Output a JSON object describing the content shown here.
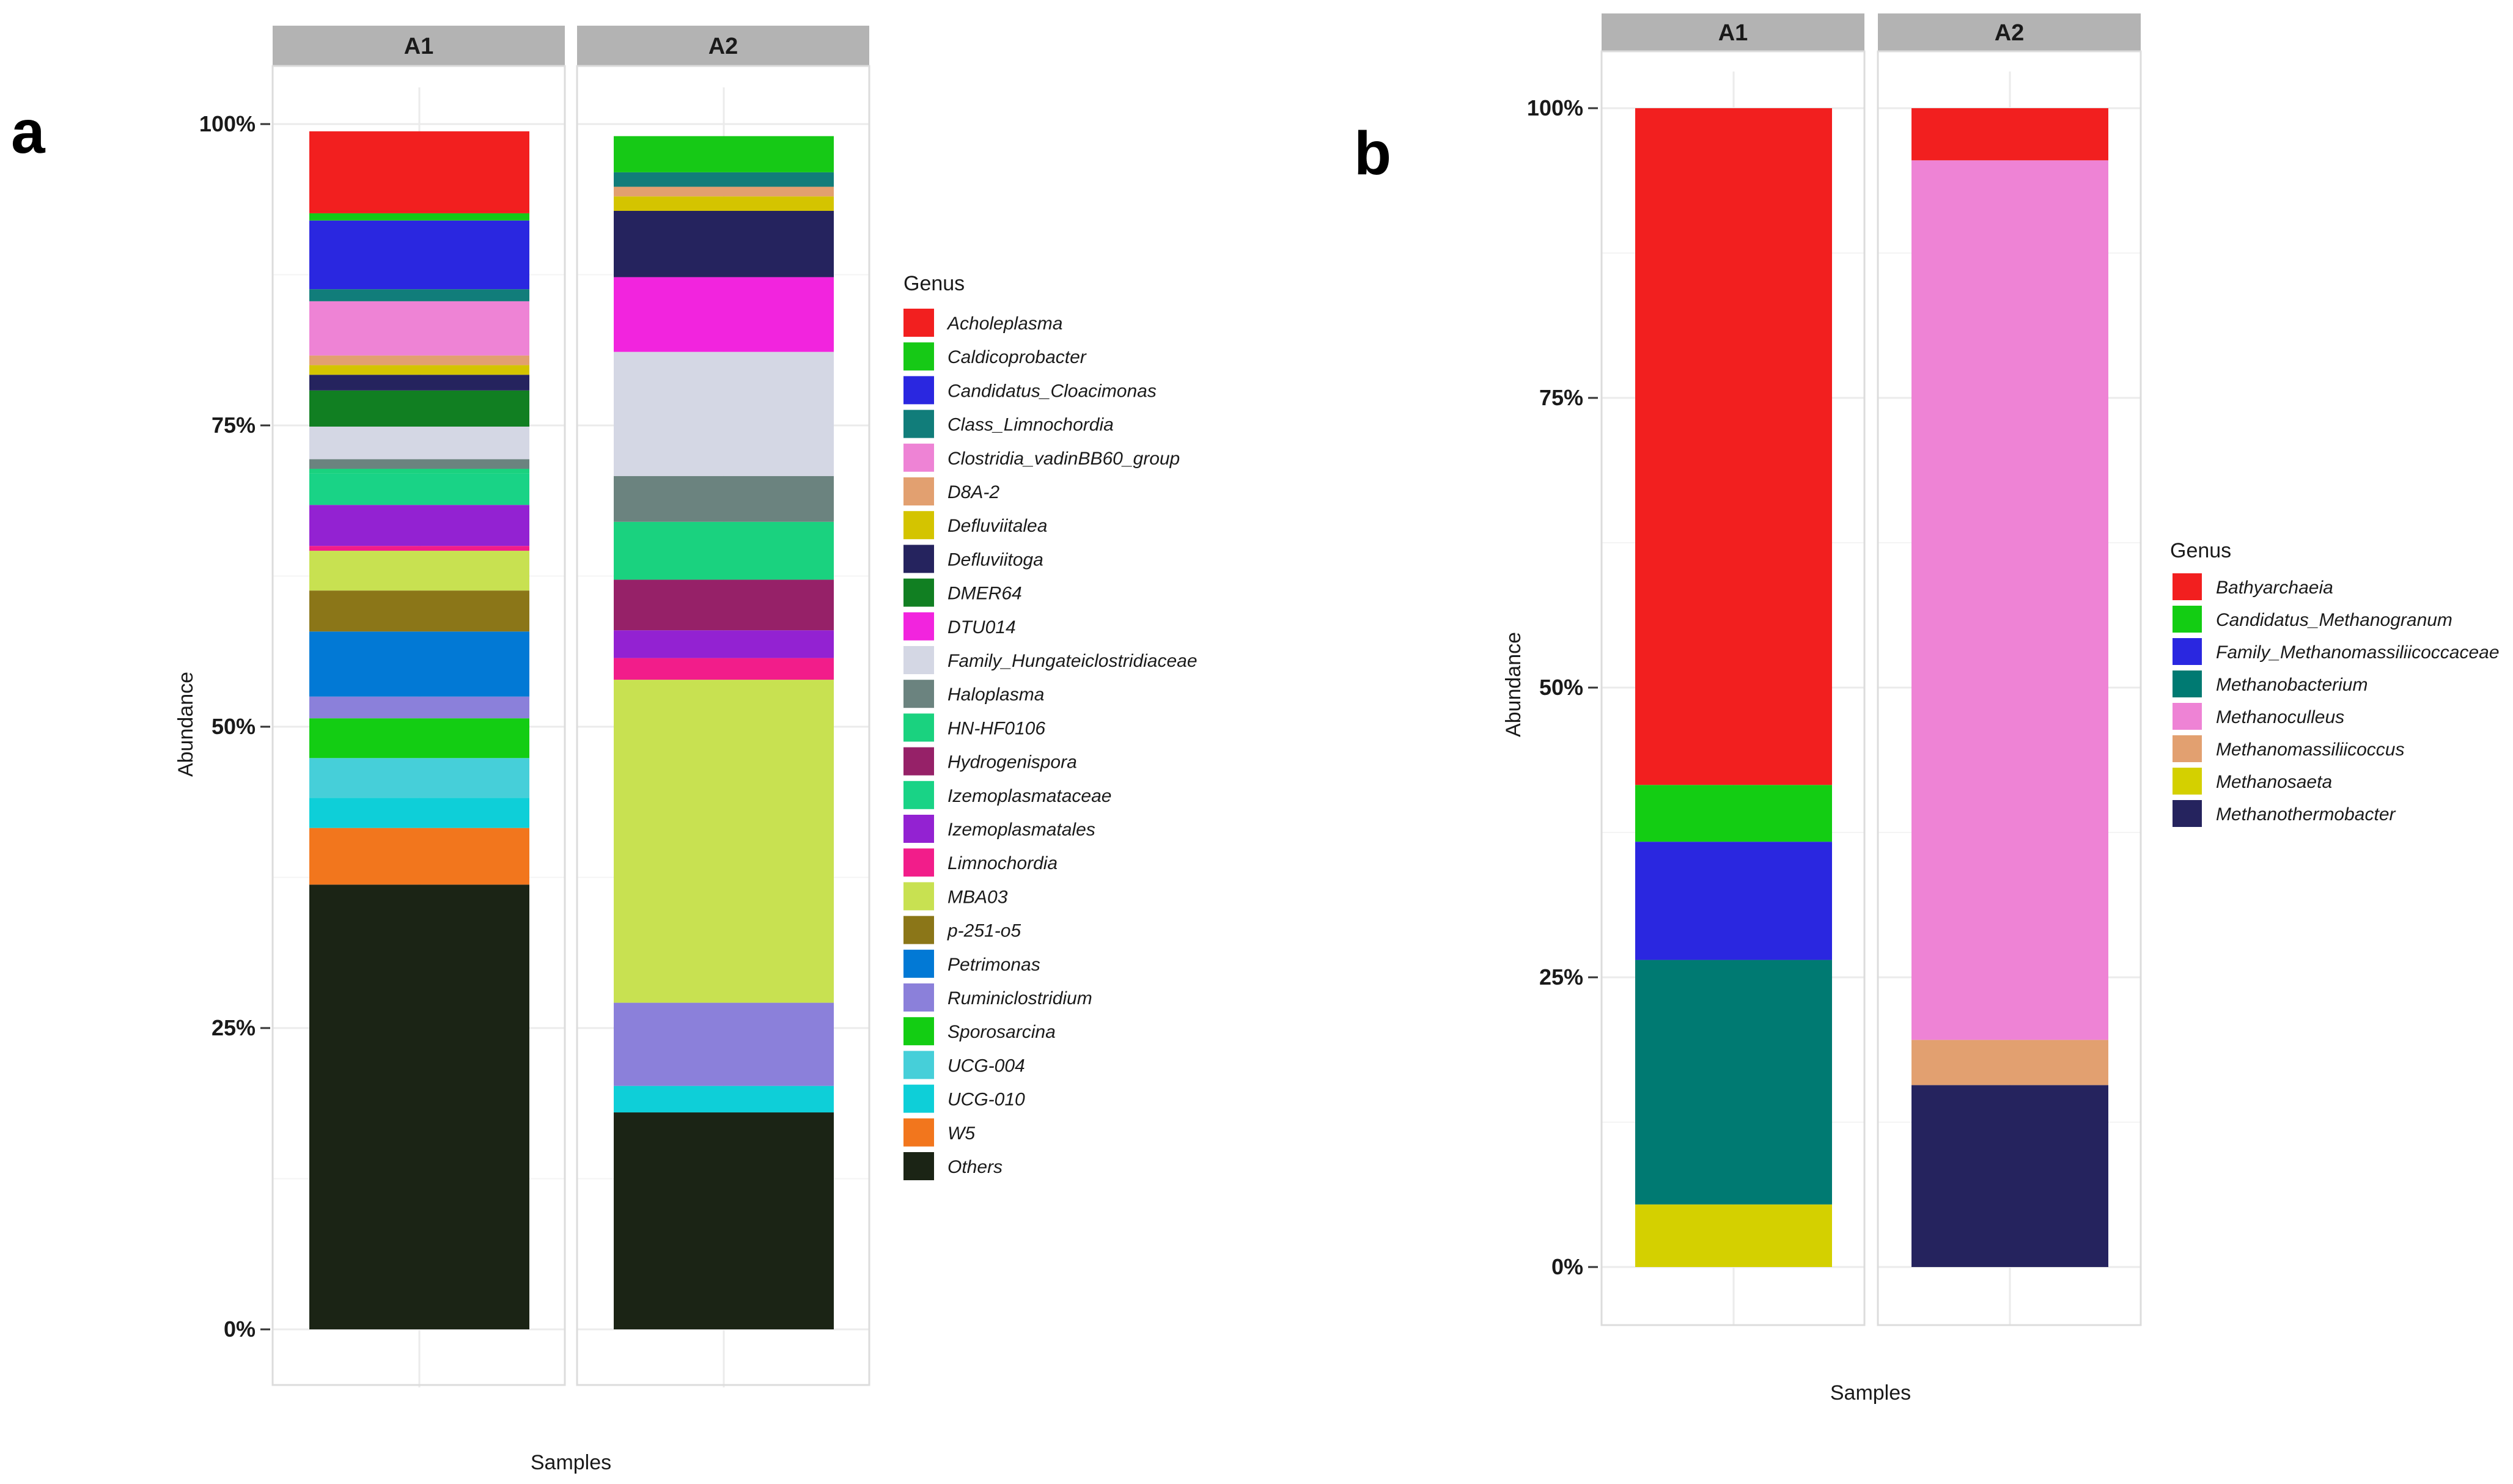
{
  "chart_data": [
    {
      "panel_label": "a",
      "type": "bar",
      "stacked": true,
      "facets": [
        "A1",
        "A2"
      ],
      "xlabel": "Samples",
      "ylabel": "Abundance",
      "ylim": [
        0,
        1
      ],
      "yticks": [
        "0%",
        "25%",
        "50%",
        "75%",
        "100%"
      ],
      "legend_title": "Genus",
      "series": [
        {
          "name": "Acholeplasma",
          "color": "#f21f1f",
          "values": [
            0.068,
            0.0
          ]
        },
        {
          "name": "Caldicoprobacter",
          "color": "#16c916",
          "values": [
            0.006,
            0.03
          ]
        },
        {
          "name": "Candidatus_Cloacimonas",
          "color": "#2a27e0",
          "values": [
            0.057,
            0.0
          ]
        },
        {
          "name": "Class_Limnochordia",
          "color": "#117d7a",
          "values": [
            0.01,
            0.012
          ]
        },
        {
          "name": "Clostridia_vadinBB60_group",
          "color": "#ee83d5",
          "values": [
            0.045,
            0.0
          ]
        },
        {
          "name": "D8A-2",
          "color": "#e2a070",
          "values": [
            0.008,
            0.008
          ]
        },
        {
          "name": "Defluviitalea",
          "color": "#d4c400",
          "values": [
            0.008,
            0.012
          ]
        },
        {
          "name": "Defluviitoga",
          "color": "#25235e",
          "values": [
            0.013,
            0.055
          ]
        },
        {
          "name": "DMER64",
          "color": "#117f22",
          "values": [
            0.03,
            0.0
          ]
        },
        {
          "name": "DTU014",
          "color": "#f224de",
          "values": [
            0.0,
            0.062
          ]
        },
        {
          "name": "Family_Hungateiclostridiaceae",
          "color": "#d4d7e4",
          "values": [
            0.027,
            0.103
          ]
        },
        {
          "name": "Haloplasma",
          "color": "#6b837f",
          "values": [
            0.008,
            0.038
          ]
        },
        {
          "name": "HN-HF0106",
          "color": "#1ad27f",
          "values": [
            0.004,
            0.048
          ]
        },
        {
          "name": "Hydrogenispora",
          "color": "#962168",
          "values": [
            0.0,
            0.042
          ]
        },
        {
          "name": "Izemoplasmataceae",
          "color": "#19d386",
          "values": [
            0.026,
            0.0
          ]
        },
        {
          "name": "Izemoplasmatales",
          "color": "#9322d2",
          "values": [
            0.034,
            0.023
          ]
        },
        {
          "name": "Limnochordia",
          "color": "#f21d8a",
          "values": [
            0.004,
            0.018
          ]
        },
        {
          "name": "MBA03",
          "color": "#c8e151",
          "values": [
            0.033,
            0.268
          ]
        },
        {
          "name": "p-251-o5",
          "color": "#8b7618",
          "values": [
            0.034,
            0.0
          ]
        },
        {
          "name": "Petrimonas",
          "color": "#0279d5",
          "values": [
            0.054,
            0.0
          ]
        },
        {
          "name": "Ruminiclostridium",
          "color": "#8b80da",
          "values": [
            0.018,
            0.069
          ]
        },
        {
          "name": "Sporosarcina",
          "color": "#13cd13",
          "values": [
            0.033,
            0.0
          ]
        },
        {
          "name": "UCG-004",
          "color": "#46cfd9",
          "values": [
            0.033,
            0.0
          ]
        },
        {
          "name": "UCG-010",
          "color": "#0ecfd8",
          "values": [
            0.025,
            0.022
          ]
        },
        {
          "name": "W5",
          "color": "#f2761d",
          "values": [
            0.047,
            0.0
          ]
        },
        {
          "name": "Others",
          "color": "#1b2415",
          "values": [
            0.369,
            0.18
          ]
        }
      ]
    },
    {
      "panel_label": "b",
      "type": "bar",
      "stacked": true,
      "facets": [
        "A1",
        "A2"
      ],
      "xlabel": "Samples",
      "ylabel": "Abundance",
      "ylim": [
        0,
        1
      ],
      "yticks": [
        "0%",
        "25%",
        "50%",
        "75%",
        "100%"
      ],
      "legend_title": "Genus",
      "series": [
        {
          "name": "Bathyarchaeia",
          "color": "#f21f1f",
          "values": [
            0.584,
            0.045
          ]
        },
        {
          "name": "Candidatus_Methanogranum",
          "color": "#13cd13",
          "values": [
            0.049,
            0.0
          ]
        },
        {
          "name": "Family_Methanomassiliicoccaceae",
          "color": "#2a27e0",
          "values": [
            0.102,
            0.0
          ]
        },
        {
          "name": "Methanobacterium",
          "color": "#007a72",
          "values": [
            0.211,
            0.0
          ]
        },
        {
          "name": "Methanoculleus",
          "color": "#ee83d5",
          "values": [
            0.0,
            0.759
          ]
        },
        {
          "name": "Methanomassiliicoccus",
          "color": "#e2a070",
          "values": [
            0.0,
            0.039
          ]
        },
        {
          "name": "Methanosaeta",
          "color": "#d4d000",
          "values": [
            0.054,
            0.0
          ]
        },
        {
          "name": "Methanothermobacter",
          "color": "#25235e",
          "values": [
            0.0,
            0.157
          ]
        }
      ]
    }
  ]
}
